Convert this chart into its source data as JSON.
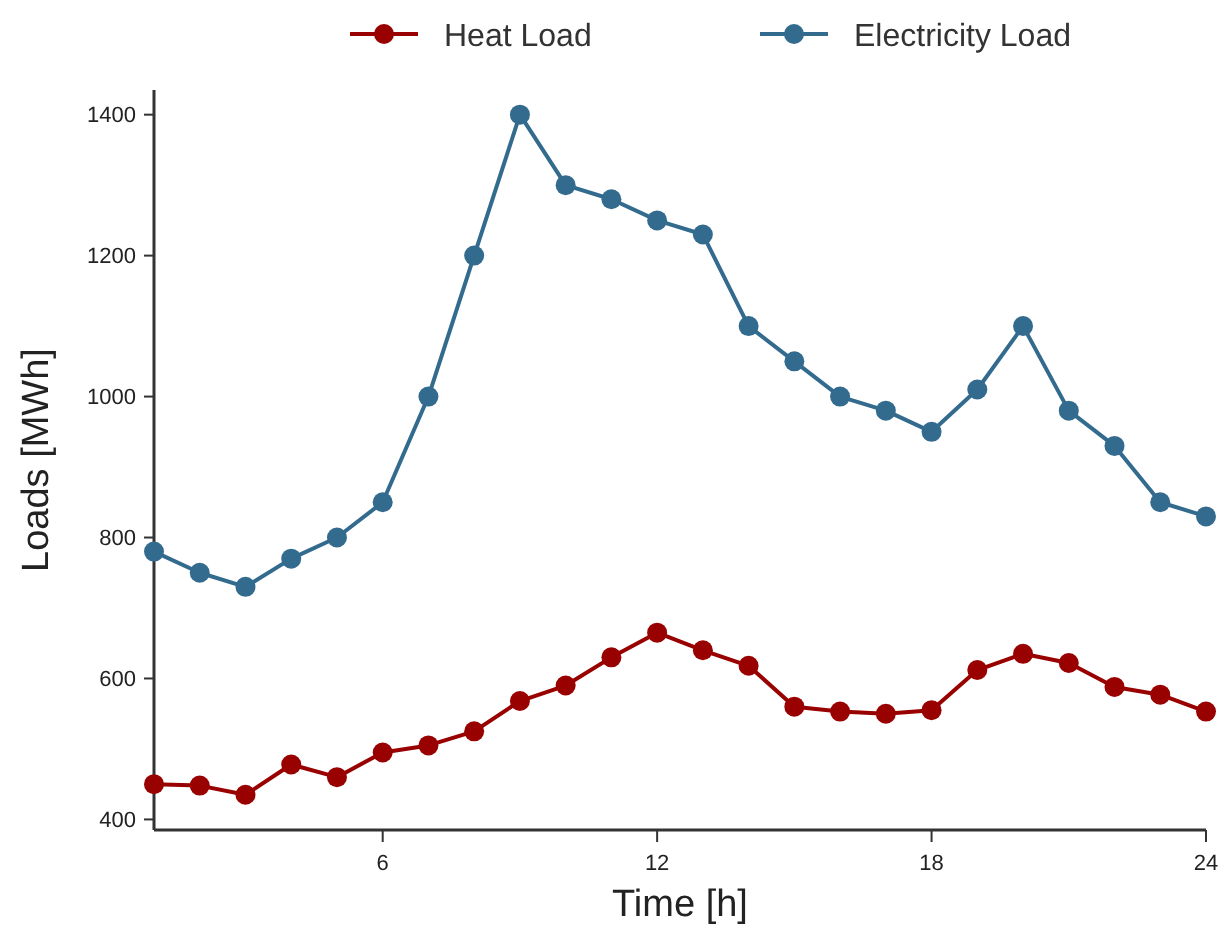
{
  "chart_data": {
    "type": "line",
    "xlabel": "Time [h]",
    "ylabel": "Loads [MWh]",
    "x": [
      1,
      2,
      3,
      4,
      5,
      6,
      7,
      8,
      9,
      10,
      11,
      12,
      13,
      14,
      15,
      16,
      17,
      18,
      19,
      20,
      21,
      22,
      23,
      24
    ],
    "series": [
      {
        "name": "Heat Load",
        "color": "#990000",
        "values": [
          450,
          448,
          435,
          478,
          460,
          495,
          505,
          525,
          568,
          590,
          630,
          665,
          640,
          618,
          560,
          553,
          550,
          555,
          612,
          635,
          622,
          588,
          577,
          553
        ]
      },
      {
        "name": "Electricity Load",
        "color": "#336b8f",
        "values": [
          780,
          750,
          730,
          770,
          800,
          850,
          1000,
          1200,
          1400,
          1300,
          1280,
          1250,
          1230,
          1100,
          1050,
          1000,
          980,
          950,
          1010,
          1100,
          980,
          930,
          850,
          830
        ]
      }
    ],
    "xlim": [
      1,
      24
    ],
    "xticks": [
      6,
      12,
      18,
      24
    ],
    "ylim": [
      385,
      1435
    ],
    "yticks": [
      400,
      600,
      800,
      1000,
      1200,
      1400
    ],
    "marker": "circle",
    "legend": "top",
    "grid": false
  }
}
